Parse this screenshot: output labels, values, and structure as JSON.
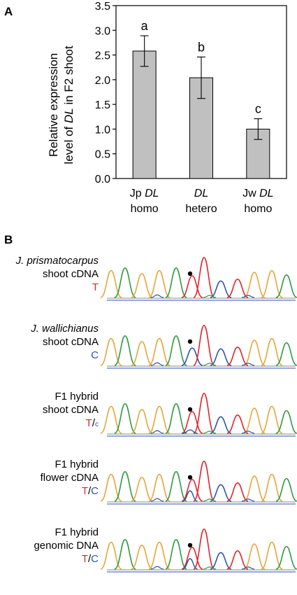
{
  "panel_a": {
    "label": "A",
    "chart_data": {
      "type": "bar",
      "ylabel_line1": "Relative expression",
      "ylabel_line2_pre": "level of ",
      "ylabel_line2_ital": "DL",
      "ylabel_line2_post": " in F2 shoot",
      "ylim": [
        0,
        3.5
      ],
      "yticks": [
        "0.0",
        "0.5",
        "1.0",
        "1.5",
        "2.0",
        "2.5",
        "3.0",
        "3.5"
      ],
      "categories": [
        {
          "line1_pre": "Jp ",
          "line1_ital": "DL",
          "line2": "homo"
        },
        {
          "line1_pre": "",
          "line1_ital": "DL",
          "line2": "hetero"
        },
        {
          "line1_pre": "Jw ",
          "line1_ital": "DL",
          "line2": "homo"
        }
      ],
      "values": [
        2.58,
        2.04,
        1.0
      ],
      "errors": [
        0.31,
        0.42,
        0.21
      ],
      "significance": [
        "a",
        "b",
        "c"
      ],
      "bar_color": "#c0c0c0",
      "grid": false
    }
  },
  "panel_b": {
    "label": "B",
    "colors": {
      "T": "#e3242b",
      "C": "#2a55b0",
      "A": "#2e9a44",
      "G": "#e8a53a"
    },
    "traces": [
      {
        "name_ital": "J. prismatocarpus",
        "name2": "shoot cDNA",
        "allele_main": "T",
        "allele_sep": "",
        "allele_second": "",
        "minor_small": false
      },
      {
        "name_ital": "J. wallichianus",
        "name2": "shoot cDNA",
        "allele_main": "C",
        "allele_sep": "",
        "allele_second": "",
        "minor_small": false
      },
      {
        "name": "F1 hybrid",
        "name2": "shoot cDNA",
        "allele_main": "T",
        "allele_sep": "/",
        "allele_second": "c",
        "minor_small": true
      },
      {
        "name": "F1 hybrid",
        "name2": "flower cDNA",
        "allele_main": "T",
        "allele_sep": "/",
        "allele_second": "C",
        "minor_small": false
      },
      {
        "name": "F1 hybrid",
        "name2": "genomic DNA",
        "allele_main": "T",
        "allele_sep": "/",
        "allele_second": "C",
        "minor_small": false
      }
    ]
  }
}
